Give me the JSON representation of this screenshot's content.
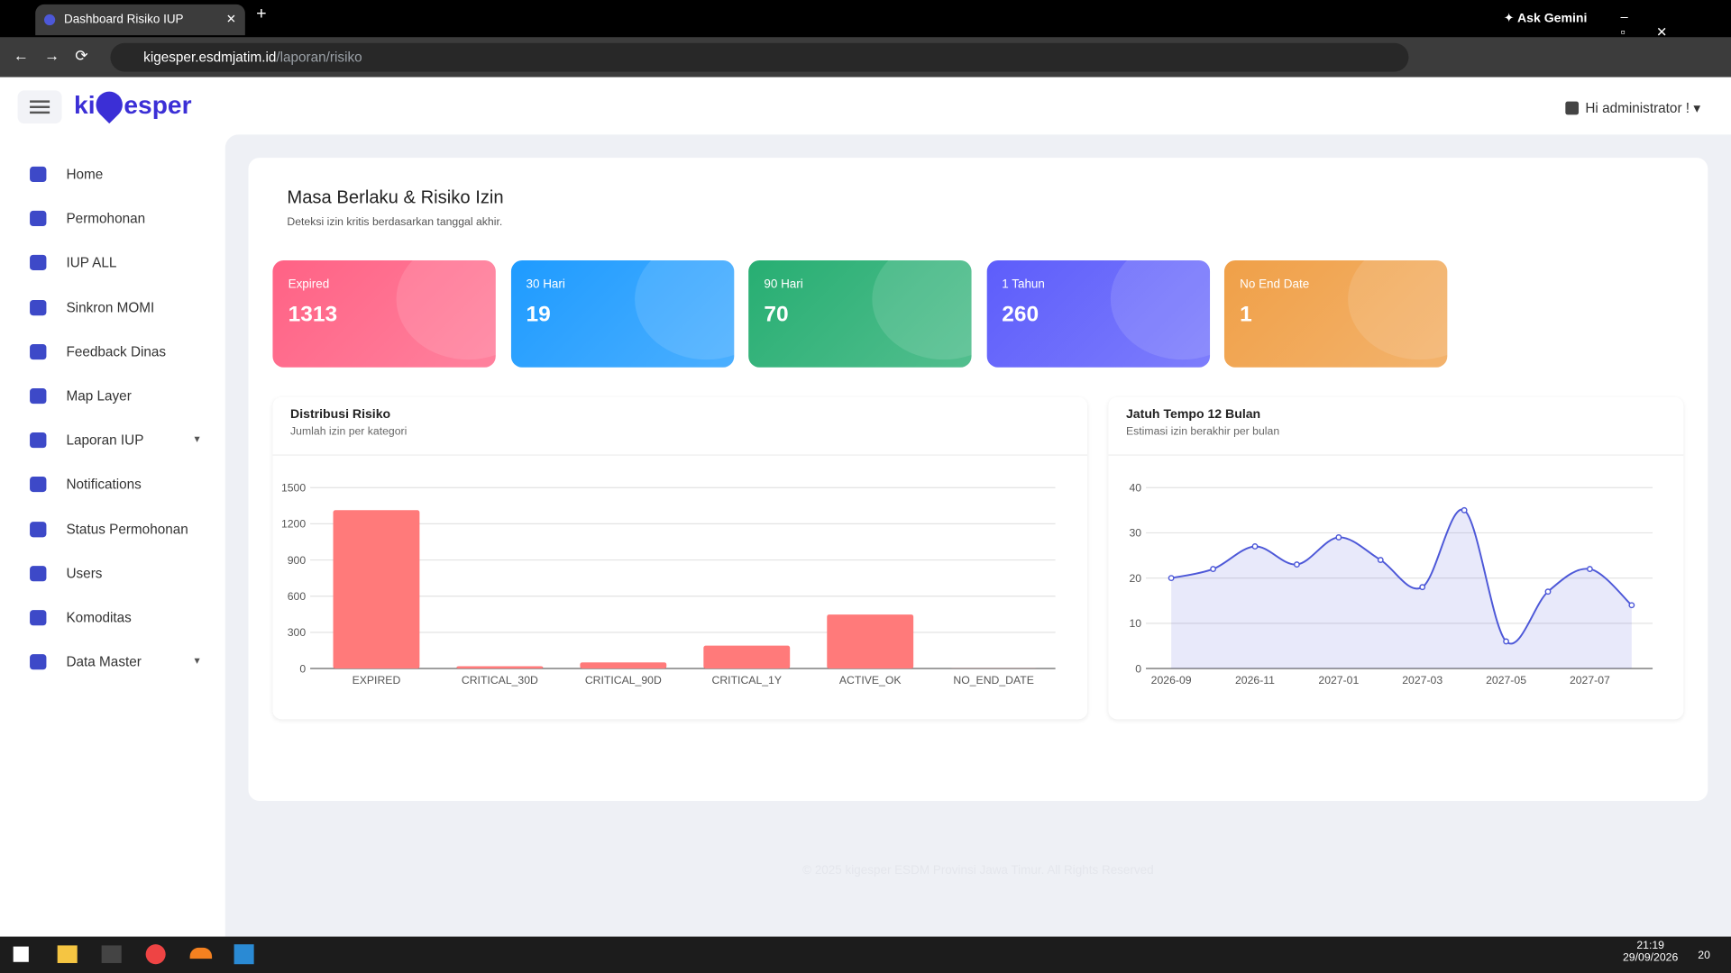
{
  "browser": {
    "tab_title": "Dashboard Risiko IUP",
    "address_host": "kigesper.esdmjatim.id",
    "address_path": "/laporan/risiko",
    "ask_gemini": "Ask Gemini"
  },
  "header": {
    "logo_prefix": "ki",
    "logo_suffix": "esper",
    "user": "Hi administrator !"
  },
  "sidebar": [
    "Home",
    "Permohonan",
    "IUP ALL",
    "Sinkron MOMI",
    "Feedback Dinas",
    "Map Layer",
    "Laporan IUP",
    "Notifications",
    "Status Permohonan",
    "Users",
    "Komoditas",
    "Data Master"
  ],
  "page": {
    "title": "Masa Berlaku & Risiko Izin",
    "subtitle": "Deteksi izin kritis berdasarkan tanggal akhir."
  },
  "cards": [
    {
      "label": "Expired",
      "value": 1313,
      "color": "#ff6285"
    },
    {
      "label": "30 Hari",
      "value": 19,
      "color": "#1e9bff"
    },
    {
      "label": "90 Hari",
      "value": 70,
      "color": "#27ae72"
    },
    {
      "label": "1 Tahun",
      "value": 260,
      "color": "#5d5dfb"
    },
    {
      "label": "No End Date",
      "value": 1,
      "color": "#f0a048"
    }
  ],
  "chart_data": [
    {
      "type": "bar",
      "title": "Distribusi Risiko",
      "subtitle": "Jumlah izin per kategori",
      "categories": [
        "EXPIRED",
        "CRITICAL_30D",
        "CRITICAL_90D",
        "CRITICAL_1Y",
        "ACTIVE_OK",
        "NO_END_DATE"
      ],
      "values": [
        1313,
        19,
        51,
        190,
        448,
        1
      ],
      "color": "#ff7a7a",
      "ylim": [
        0,
        1500
      ],
      "yticks": [
        0,
        300,
        600,
        900,
        1200,
        1500
      ],
      "grid": true
    },
    {
      "type": "line",
      "title": "Jatuh Tempo 12 Bulan",
      "subtitle": "Estimasi izin berakhir per bulan",
      "categories": [
        "2026-09",
        null,
        "2026-11",
        null,
        "2027-01",
        null,
        "2027-03",
        null,
        "2027-05",
        null,
        "2027-07",
        null
      ],
      "series": [
        {
          "color": "#4d58d8",
          "values": [
            20,
            22,
            27,
            23,
            29,
            24,
            18,
            35,
            6,
            17,
            22,
            14
          ]
        }
      ],
      "ylim": [
        0,
        40
      ],
      "yticks": [
        0,
        10,
        20,
        30,
        40
      ],
      "grid": true
    }
  ],
  "footer": "© 2025 kigesper ESDM Provinsi Jawa Timur. All Rights Reserved",
  "taskbar": {
    "time": "21:19",
    "date": "29/09/2026",
    "notifications": 20
  }
}
